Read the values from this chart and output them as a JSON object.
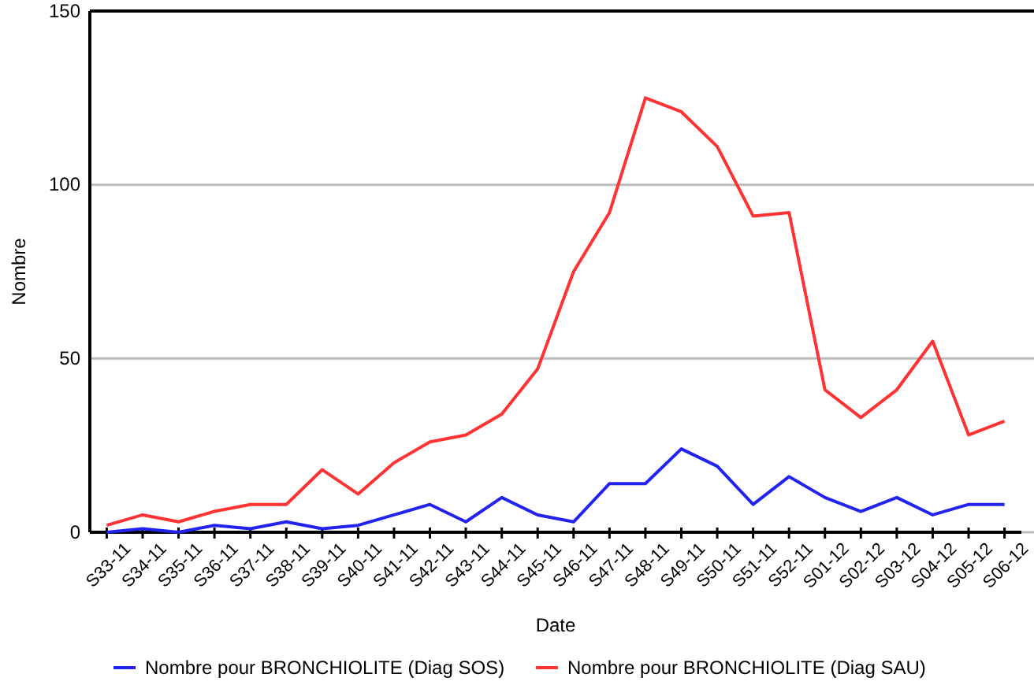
{
  "chart_data": {
    "type": "line",
    "xlabel": "Date",
    "ylabel": "Nombre",
    "categories": [
      "S33-11",
      "S34-11",
      "S35-11",
      "S36-11",
      "S37-11",
      "S38-11",
      "S39-11",
      "S40-11",
      "S41-11",
      "S42-11",
      "S43-11",
      "S44-11",
      "S45-11",
      "S46-11",
      "S47-11",
      "S48-11",
      "S49-11",
      "S50-11",
      "S51-11",
      "S52-11",
      "S01-12",
      "S02-12",
      "S03-12",
      "S04-12",
      "S05-12",
      "S06-12"
    ],
    "series": [
      {
        "name": "Nombre pour BRONCHIOLITE (Diag SOS)",
        "color": "#2323f0",
        "values": [
          0,
          1,
          0,
          2,
          1,
          3,
          1,
          2,
          5,
          8,
          3,
          10,
          5,
          3,
          14,
          14,
          24,
          19,
          8,
          16,
          10,
          6,
          10,
          5,
          8,
          8
        ]
      },
      {
        "name": "Nombre pour BRONCHIOLITE (Diag SAU)",
        "color": "#ff3333",
        "values": [
          2,
          5,
          3,
          6,
          8,
          8,
          18,
          11,
          20,
          26,
          28,
          34,
          47,
          75,
          92,
          125,
          121,
          111,
          91,
          92,
          41,
          33,
          41,
          55,
          28,
          32
        ]
      }
    ],
    "ylim": [
      0,
      150
    ],
    "yticks": [
      0,
      50,
      100,
      150
    ],
    "grid": "y",
    "legend": "bottom",
    "marker": "none",
    "line_style": "solid"
  }
}
